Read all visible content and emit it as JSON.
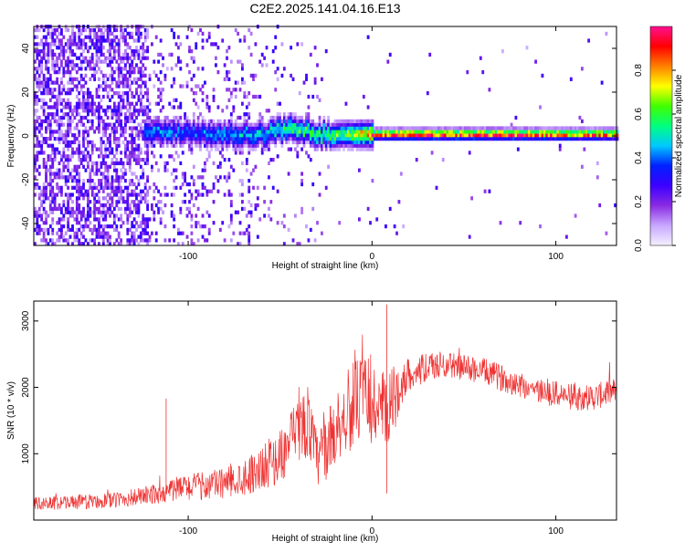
{
  "figure": {
    "title": "C2E2.2025.141.04.16.E13"
  },
  "chart_data": [
    {
      "type": "heatmap",
      "title": "C2E2.2025.141.04.16.E13",
      "xlabel": "Height of straight line (km)",
      "ylabel": "Frequency (Hz)",
      "xlim": [
        -184,
        133
      ],
      "ylim": [
        -50,
        50
      ],
      "xticks": [
        -100,
        0,
        100
      ],
      "xtick_labels": [
        "-100",
        "0",
        "100"
      ],
      "yticks": [
        -40,
        -20,
        0,
        20,
        40
      ],
      "ytick_labels": [
        "-40",
        "-20",
        "0",
        "20",
        "40"
      ],
      "colorbar": {
        "label": "Normalized spectral amplitude",
        "range": [
          0,
          1
        ],
        "ticks": [
          0,
          0.2,
          0.4,
          0.6,
          0.8
        ],
        "tick_labels": [
          "0.0",
          "0.2",
          "0.4",
          "0.6",
          "0.8"
        ],
        "colormap": [
          "#f4f0ff",
          "#c8a8ff",
          "#8a2be2",
          "#3c00ff",
          "#0020ff",
          "#00c8ff",
          "#00ff80",
          "#40ff00",
          "#ffff00",
          "#ff8000",
          "#ff0000",
          "#ff1090"
        ]
      },
      "ridge": {
        "description_x": [
          -120,
          -100,
          -80,
          -60,
          -45,
          -30,
          -15,
          0,
          20,
          50,
          80,
          100,
          133
        ],
        "center_freq": [
          1,
          1,
          0,
          0,
          3,
          0,
          0,
          0,
          0,
          0,
          0,
          0,
          0
        ],
        "amplitude": [
          0.45,
          0.4,
          0.45,
          0.5,
          0.6,
          0.6,
          0.65,
          0.9,
          0.95,
          0.95,
          0.95,
          0.9,
          0.85
        ]
      },
      "grid": false
    },
    {
      "type": "line",
      "xlabel": "Height of straight line (km)",
      "ylabel": "SNR (10 * v/v)",
      "xlim": [
        -184,
        133
      ],
      "ylim": [
        0,
        3300
      ],
      "xticks": [
        -100,
        0,
        100
      ],
      "xtick_labels": [
        "-100",
        "0",
        "100"
      ],
      "yticks": [
        1000,
        2000,
        3000
      ],
      "ytick_labels": [
        "1000",
        "2000",
        "3000"
      ],
      "line_color": "#ee3333",
      "series": [
        {
          "x": [
            -184,
            -160,
            -140,
            -120,
            -110,
            -100,
            -90,
            -80,
            -70,
            -60,
            -50,
            -45,
            -40,
            -35,
            -30,
            -25,
            -20,
            -15,
            -10,
            -5,
            0,
            5,
            8,
            10,
            15,
            20,
            30,
            40,
            50,
            60,
            70,
            80,
            90,
            100,
            110,
            120,
            133
          ],
          "values": [
            250,
            270,
            300,
            380,
            450,
            500,
            520,
            560,
            650,
            780,
            950,
            1150,
            1350,
            1500,
            900,
            1100,
            1350,
            1550,
            1750,
            1850,
            1800,
            1600,
            1500,
            1700,
            2000,
            2200,
            2300,
            2350,
            2300,
            2250,
            2150,
            2050,
            1950,
            1900,
            1850,
            1850,
            1950
          ],
          "noise": [
            100,
            110,
            120,
            150,
            180,
            200,
            220,
            240,
            280,
            330,
            400,
            450,
            500,
            550,
            450,
            500,
            550,
            600,
            650,
            650,
            700,
            700,
            700,
            600,
            350,
            250,
            220,
            200,
            200,
            200,
            200,
            200,
            200,
            200,
            200,
            200,
            200
          ]
        }
      ],
      "annotations": [
        {
          "x": 8,
          "y": 3250,
          "label": ""
        },
        {
          "x": -112,
          "y": 1830,
          "label": ""
        }
      ],
      "grid": false
    }
  ]
}
